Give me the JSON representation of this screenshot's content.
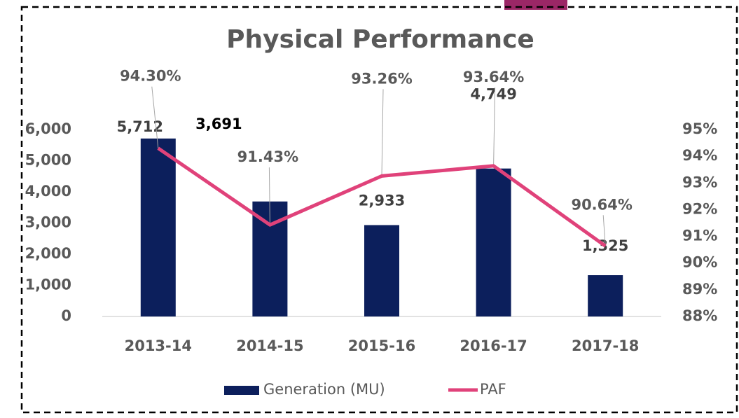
{
  "chart_data": {
    "type": "bar-line",
    "title": "Physical Performance",
    "categories": [
      "2013-14",
      "2014-15",
      "2015-16",
      "2016-17",
      "2017-18"
    ],
    "series": [
      {
        "name": "Generation (MU)",
        "type": "bar",
        "color": "#0c1f5c",
        "values": [
          5712,
          3691,
          2933,
          4749,
          1325
        ],
        "value_labels": [
          "5,712",
          "3,691",
          "2,933",
          "4,749",
          "1,325"
        ]
      },
      {
        "name": "PAF",
        "type": "line",
        "axis": "y2",
        "color": "#e0427a",
        "values": [
          94.3,
          91.43,
          93.26,
          93.64,
          90.64
        ],
        "value_labels": [
          "94.30%",
          "91.43%",
          "93.26%",
          "93.64%",
          "90.64%"
        ]
      }
    ],
    "ylim": [
      0,
      6000
    ],
    "yticks": [
      0,
      {
        "value": 1000,
        "label": "1,000"
      },
      {
        "value": 2000,
        "label": "2,000"
      },
      {
        "value": 3000,
        "label": "3,000"
      },
      {
        "value": 4000,
        "label": "4,000"
      },
      {
        "value": 5000,
        "label": "5,000"
      },
      {
        "value": 6000,
        "label": "6,000"
      }
    ],
    "y2lim": [
      88,
      95
    ],
    "y2ticks": [
      {
        "value": 88,
        "label": "88%"
      },
      {
        "value": 89,
        "label": "89%"
      },
      {
        "value": 90,
        "label": "90%"
      },
      {
        "value": 91,
        "label": "91%"
      },
      {
        "value": 92,
        "label": "92%"
      },
      {
        "value": 93,
        "label": "93%"
      },
      {
        "value": 94,
        "label": "94%"
      },
      {
        "value": 95,
        "label": "95%"
      }
    ],
    "grid": false,
    "legend": "bottom"
  }
}
